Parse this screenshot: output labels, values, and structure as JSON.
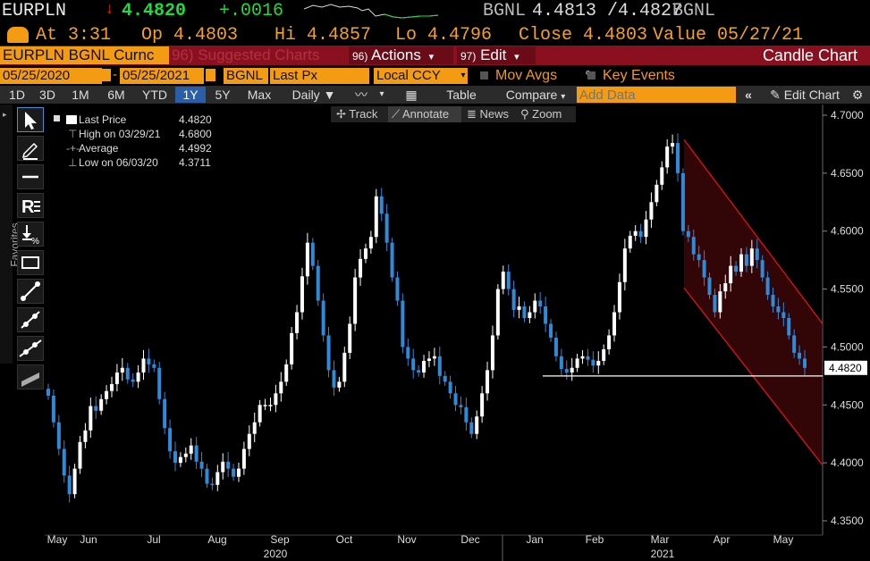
{
  "header": {
    "ticker": "EURPLN",
    "arrow": "↓",
    "last": "4.4820",
    "change": "+.0016",
    "source_a": "BGNL",
    "bid_ask": "4.4813 /4.4827",
    "source_b": "BGNL"
  },
  "quote": {
    "at": "At 3:31",
    "open": "Op 4.4803",
    "high": "Hi 4.4857",
    "low": "Lo 4.4796",
    "close": "Close 4.4803",
    "value": "Value 05/27/21"
  },
  "menubar": {
    "security": "EURPLN BGNL Curnc",
    "suggested": "96) Suggested Charts",
    "actions_num": "96)",
    "actions": "Actions",
    "edit_num": "97)",
    "edit": "Edit",
    "title": "Candle Chart"
  },
  "params": {
    "start": "05/25/2020",
    "end": "05/25/2021",
    "source": "BGNL",
    "field": "Last Px",
    "currency": "Local CCY",
    "mov_avgs": "Mov Avgs",
    "key_events": "Key Events"
  },
  "toolbar": {
    "periods": [
      "1D",
      "3D",
      "1M",
      "6M",
      "YTD",
      "1Y",
      "5Y",
      "Max"
    ],
    "selected_period": "1Y",
    "frequency": "Daily",
    "table": "Table",
    "compare": "Compare",
    "add_data_placeholder": "Add Data",
    "edit_chart": "Edit Chart"
  },
  "chart_tools": {
    "track": "Track",
    "annotate": "Annotate",
    "news": "News",
    "zoom": "Zoom",
    "favorites": "Favorites"
  },
  "legend": {
    "last_label": "Last Price",
    "last_value": "4.4820",
    "high_label": "High on 03/29/21",
    "high_value": "4.6800",
    "avg_label": "Average",
    "avg_value": "4.4992",
    "low_label": "Low on 06/03/20",
    "low_value": "4.3711"
  },
  "colors": {
    "positive": "#1fdc3a",
    "negative": "#e02020",
    "accent_orange": "#f39b13",
    "menu_red": "#8a1020",
    "candle_up": "#ffffff",
    "candle_down": "#2f8ad8",
    "channel": "#e0121b"
  },
  "chart_data": {
    "type": "candlestick",
    "y_axis": {
      "ticks": [
        "4.7000",
        "4.6500",
        "4.6000",
        "4.5500",
        "4.5000",
        "4.4500",
        "4.4000",
        "4.3500"
      ],
      "ylim": [
        4.35,
        4.7
      ],
      "last_price_label": "4.4820"
    },
    "x_axis": {
      "months": [
        "May",
        "Jun",
        "Jul",
        "Aug",
        "Sep",
        "Oct",
        "Nov",
        "Dec",
        "Jan",
        "Feb",
        "Mar",
        "Apr",
        "May"
      ],
      "years": [
        "2020",
        "2021"
      ]
    },
    "support_level": 4.475,
    "series": [
      {
        "name": "Last Price",
        "values": [
          4.458,
          4.435,
          4.412,
          4.389,
          4.373,
          4.395,
          4.418,
          4.428,
          4.449,
          4.445,
          4.455,
          4.462,
          4.468,
          4.478,
          4.482,
          4.472,
          4.47,
          4.478,
          4.49,
          4.485,
          4.482,
          4.455,
          4.43,
          4.41,
          4.4,
          4.405,
          4.408,
          4.415,
          4.401,
          4.395,
          4.382,
          4.381,
          4.392,
          4.401,
          4.395,
          4.388,
          4.395,
          4.412,
          4.425,
          4.435,
          4.45,
          4.45,
          4.45,
          4.46,
          4.47,
          4.485,
          4.512,
          4.53,
          4.561,
          4.59,
          4.57,
          4.54,
          4.51,
          4.48,
          4.465,
          4.47,
          4.495,
          4.52,
          4.56,
          4.576,
          4.585,
          4.595,
          4.63,
          4.615,
          4.59,
          4.56,
          4.54,
          4.5,
          4.49,
          4.48,
          4.478,
          4.488,
          4.49,
          4.492,
          4.475,
          4.47,
          4.46,
          4.45,
          4.448,
          4.435,
          4.425,
          4.44,
          4.46,
          4.48,
          4.51,
          4.55,
          4.565,
          4.55,
          4.532,
          4.535,
          4.525,
          4.53,
          4.54,
          4.535,
          4.52,
          4.508,
          4.492,
          4.481,
          4.478,
          4.482,
          4.49,
          4.492,
          4.489,
          4.484,
          4.488,
          4.498,
          4.51,
          4.53,
          4.556,
          4.585,
          4.596,
          4.6,
          4.595,
          4.61,
          4.625,
          4.64,
          4.655,
          4.673,
          4.676,
          4.65,
          4.6,
          4.595,
          4.58,
          4.575,
          4.56,
          4.545,
          4.53,
          4.548,
          4.555,
          4.57,
          4.565,
          4.58,
          4.57,
          4.585,
          4.575,
          4.56,
          4.545,
          4.535,
          4.53,
          4.525,
          4.51,
          4.495,
          4.49,
          4.482
        ]
      }
    ]
  }
}
